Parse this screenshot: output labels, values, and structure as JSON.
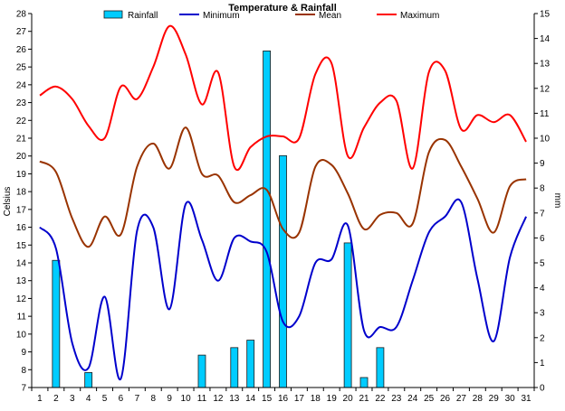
{
  "chart_data": {
    "type": "bar+line",
    "title": "Temperature & Rainfall",
    "ylabel_left": "Celsius",
    "ylabel_right": "mm",
    "xlabel": "",
    "categories": [
      1,
      2,
      3,
      4,
      5,
      6,
      7,
      8,
      9,
      10,
      11,
      12,
      13,
      14,
      15,
      16,
      17,
      18,
      19,
      20,
      21,
      22,
      23,
      24,
      25,
      26,
      27,
      28,
      29,
      30,
      31
    ],
    "ylim_left": [
      7,
      28
    ],
    "ylim_right": [
      0,
      15
    ],
    "legend": [
      "Rainfall",
      "Minimum",
      "Mean",
      "Maximum"
    ],
    "colors": {
      "rainfall_fill": "#00ccff",
      "rainfall_edge": "#1a1a1a",
      "minimum": "#0000cc",
      "mean": "#993300",
      "maximum": "#ff0000",
      "axis": "#000000",
      "background": "#ffffff"
    },
    "series": [
      {
        "name": "Rainfall",
        "axis": "right",
        "kind": "bar",
        "values": [
          0,
          5.1,
          0,
          0.6,
          0,
          0,
          0,
          0,
          0,
          0,
          1.3,
          0,
          1.6,
          1.9,
          13.5,
          9.3,
          0,
          0,
          0,
          5.8,
          0.4,
          1.6,
          0,
          0,
          0,
          0,
          0,
          0,
          0,
          0,
          0
        ]
      },
      {
        "name": "Minimum",
        "axis": "left",
        "kind": "line",
        "values": [
          16.0,
          14.8,
          9.5,
          8.1,
          12.1,
          7.5,
          15.8,
          16.0,
          11.4,
          17.3,
          15.3,
          13.0,
          15.4,
          15.2,
          14.6,
          10.7,
          11.0,
          14.0,
          14.2,
          16.1,
          10.2,
          10.4,
          10.4,
          13.0,
          15.7,
          16.6,
          17.4,
          13.1,
          9.6,
          14.3,
          16.6
        ]
      },
      {
        "name": "Mean",
        "axis": "left",
        "kind": "line",
        "values": [
          19.7,
          19.1,
          16.5,
          14.9,
          16.6,
          15.6,
          19.4,
          20.7,
          19.3,
          21.6,
          19.0,
          18.9,
          17.4,
          17.8,
          18.1,
          15.9,
          15.7,
          19.4,
          19.5,
          17.9,
          15.9,
          16.7,
          16.8,
          16.2,
          20.2,
          20.9,
          19.4,
          17.6,
          15.7,
          18.3,
          18.7
        ]
      },
      {
        "name": "Maximum",
        "axis": "left",
        "kind": "line",
        "values": [
          23.4,
          23.9,
          23.2,
          21.7,
          21.0,
          23.9,
          23.2,
          25.0,
          27.3,
          25.7,
          22.9,
          24.7,
          19.4,
          20.5,
          21.1,
          21.1,
          21.0,
          24.6,
          25.2,
          20.0,
          21.6,
          23.0,
          23.1,
          19.3,
          24.7,
          24.8,
          21.5,
          22.3,
          21.9,
          22.3,
          20.8
        ]
      }
    ]
  }
}
